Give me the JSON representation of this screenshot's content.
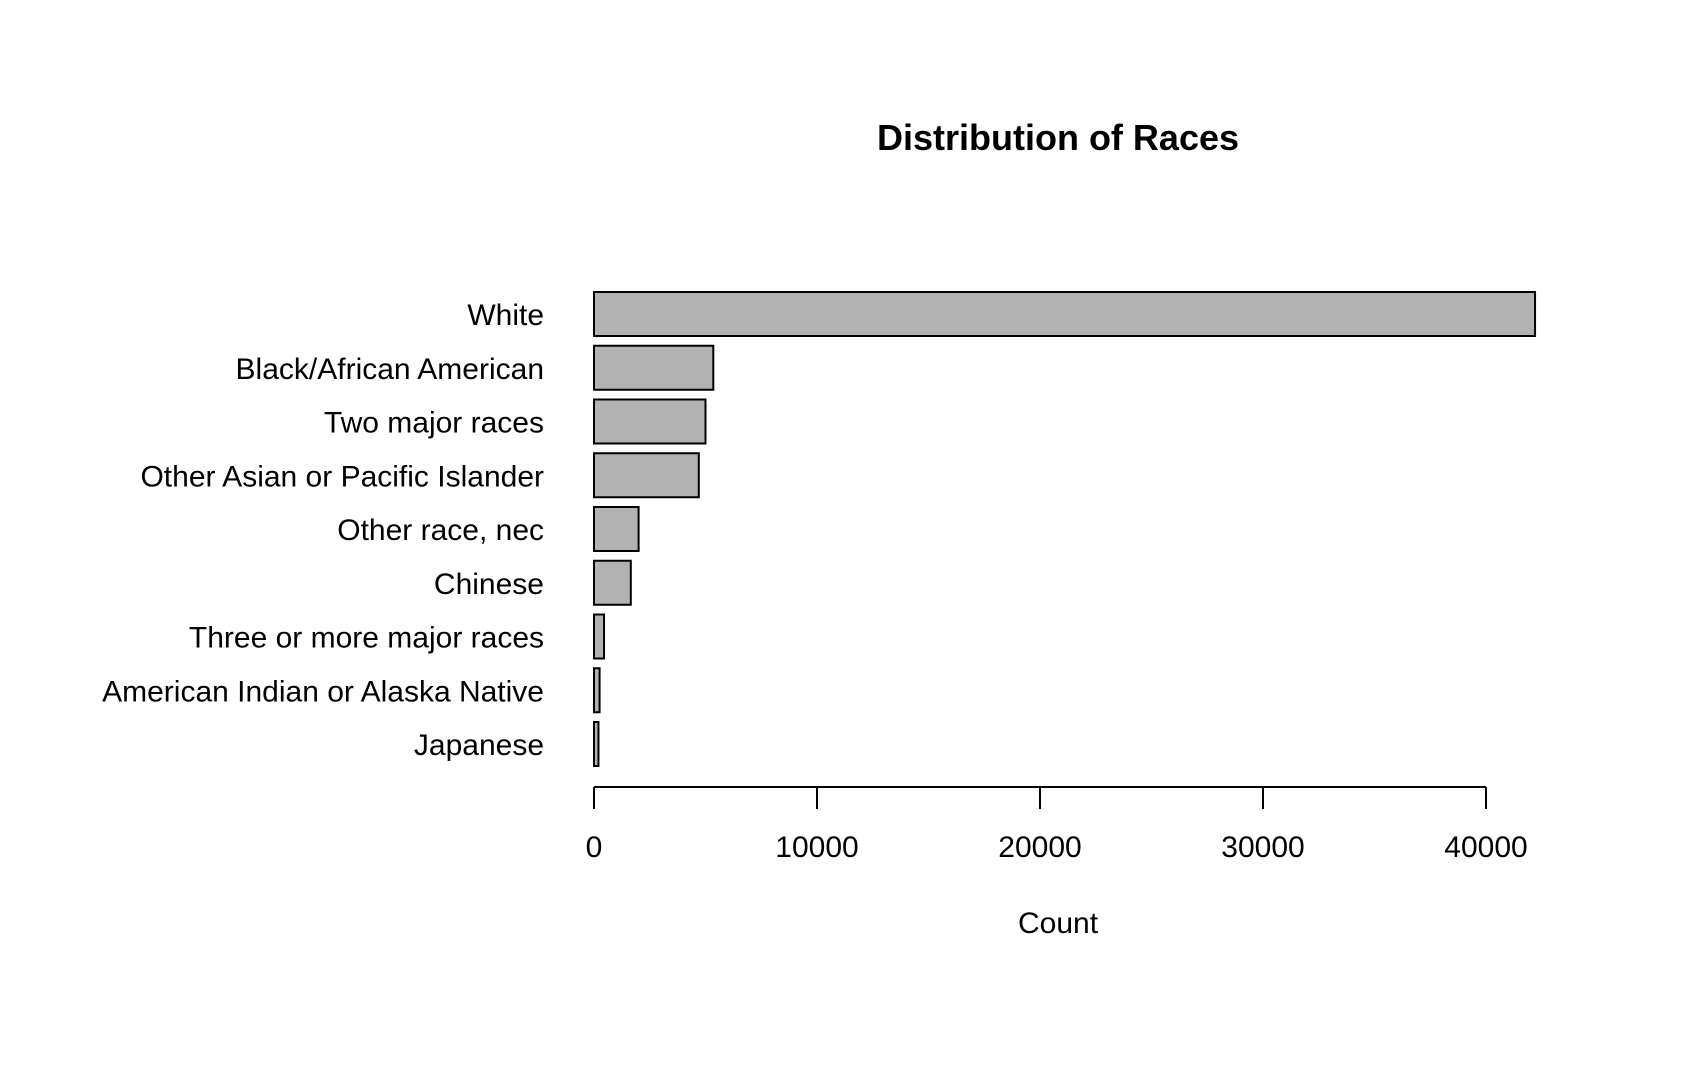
{
  "chart_data": {
    "type": "bar",
    "orientation": "horizontal",
    "title": "Distribution of Races",
    "xlabel": "Count",
    "ylabel": "",
    "xlim": [
      0,
      42200
    ],
    "xticks": [
      0,
      10000,
      20000,
      30000,
      40000
    ],
    "categories": [
      "White",
      "Black/African American",
      "Two major races",
      "Other Asian or Pacific Islander",
      "Other race, nec",
      "Chinese",
      "Three or more major races",
      "American Indian or Alaska Native",
      "Japanese"
    ],
    "values": [
      42200,
      5350,
      5000,
      4700,
      2000,
      1650,
      450,
      250,
      200
    ],
    "bar_color": "#b2b2b2",
    "grid": false,
    "legend": "none"
  }
}
